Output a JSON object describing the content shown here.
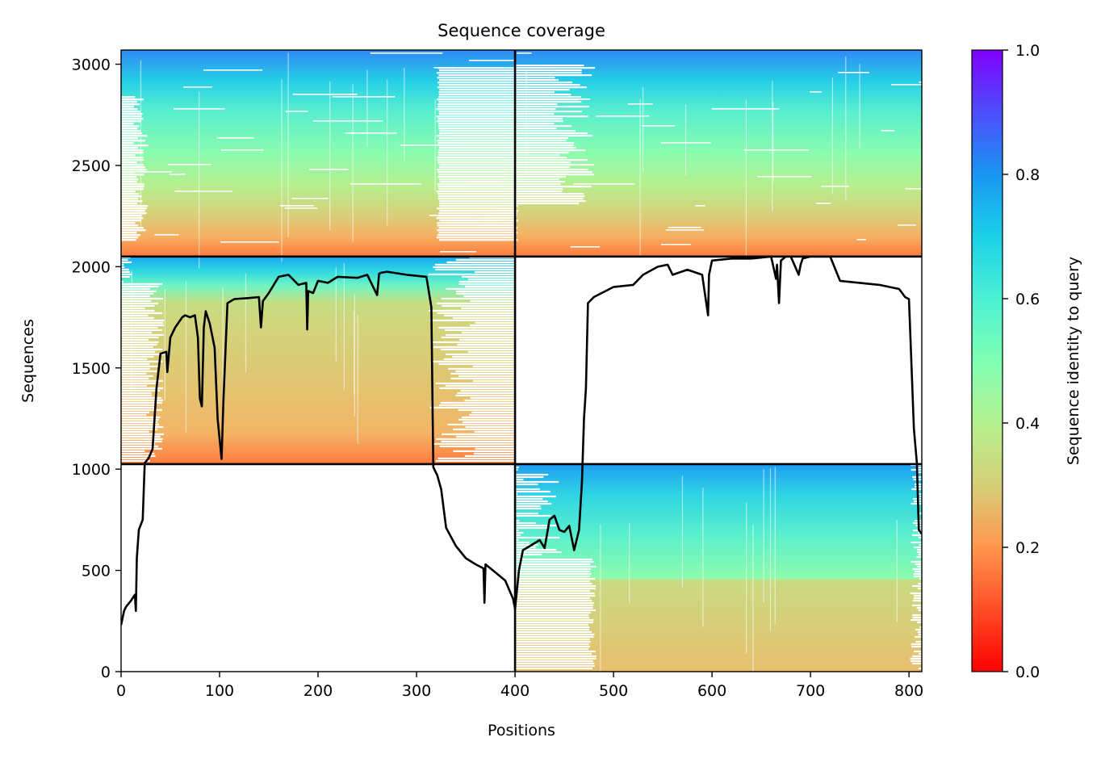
{
  "chart_data": {
    "type": "heatmap",
    "title": "Sequence coverage",
    "xlabel": "Positions",
    "ylabel": "Sequences",
    "xlim": [
      0,
      813
    ],
    "ylim": [
      0,
      3070
    ],
    "xticks": [
      0,
      100,
      200,
      300,
      400,
      500,
      600,
      700,
      800
    ],
    "yticks": [
      0,
      500,
      1000,
      1500,
      2000,
      2500,
      3000
    ],
    "grid": false,
    "colormap": "rainbow_r",
    "colorbar": {
      "label": "Sequence identity to query",
      "range": [
        0,
        1
      ],
      "ticks": [
        0.0,
        0.2,
        0.4,
        0.6,
        0.8,
        1.0
      ],
      "tick_labels": [
        "0.0",
        "0.2",
        "0.4",
        "0.6",
        "0.8",
        "1.0"
      ]
    },
    "chain_boundaries": {
      "x": 400,
      "y": [
        1025,
        2050
      ]
    },
    "blocks": [
      {
        "chain_x": "A",
        "x": [
          0,
          400
        ],
        "y": [
          2050,
          3070
        ],
        "identity_bottom": 0.22,
        "identity_top": 0.82,
        "coverage": "full"
      },
      {
        "chain_x": "B",
        "x": [
          400,
          813
        ],
        "y": [
          2050,
          3070
        ],
        "identity_bottom": 0.22,
        "identity_top": 0.82,
        "coverage": "full"
      },
      {
        "chain_x": "A",
        "x": [
          0,
          400
        ],
        "y": [
          1025,
          2050
        ],
        "identity_bottom": 0.22,
        "identity_top": 0.82,
        "coverage": "partial"
      },
      {
        "chain_x": "B",
        "x": [
          400,
          813
        ],
        "y": [
          0,
          1025
        ],
        "identity_bottom": 0.28,
        "identity_top": 0.82,
        "coverage": "partial"
      }
    ],
    "coverage_line": {
      "x": [
        0,
        3,
        5,
        10,
        14,
        15,
        16,
        18,
        22,
        24,
        28,
        32,
        36,
        40,
        46,
        47,
        50,
        55,
        62,
        65,
        70,
        75,
        78,
        80,
        82,
        84,
        86,
        90,
        95,
        98,
        102,
        104,
        108,
        115,
        130,
        140,
        142,
        144,
        150,
        160,
        170,
        180,
        188,
        189,
        190,
        195,
        200,
        210,
        220,
        240,
        250,
        260,
        262,
        264,
        270,
        290,
        310,
        315,
        317,
        319,
        321,
        325,
        330,
        340,
        350,
        360,
        368,
        369,
        370,
        390,
        398,
        400,
        404,
        408,
        415,
        425,
        430,
        435,
        440,
        445,
        450,
        455,
        460,
        465,
        468,
        470,
        472,
        474,
        476,
        480,
        500,
        520,
        530,
        545,
        555,
        560,
        575,
        590,
        596,
        597,
        600,
        620,
        640,
        660,
        665,
        666,
        668,
        670,
        675,
        680,
        688,
        690,
        692,
        700,
        720,
        730,
        750,
        770,
        790,
        796,
        800,
        805,
        808,
        810,
        813
      ],
      "y": [
        230,
        300,
        320,
        350,
        380,
        300,
        560,
        700,
        750,
        1030,
        1055,
        1100,
        1400,
        1570,
        1580,
        1480,
        1650,
        1700,
        1750,
        1760,
        1750,
        1760,
        1650,
        1350,
        1310,
        1700,
        1780,
        1720,
        1600,
        1250,
        1050,
        1350,
        1820,
        1840,
        1845,
        1850,
        1700,
        1830,
        1870,
        1950,
        1960,
        1910,
        1920,
        1690,
        1880,
        1870,
        1930,
        1920,
        1950,
        1945,
        1960,
        1860,
        1965,
        1970,
        1975,
        1960,
        1950,
        1800,
        1010,
        990,
        970,
        900,
        710,
        620,
        560,
        530,
        510,
        340,
        530,
        450,
        360,
        310,
        500,
        600,
        620,
        650,
        610,
        750,
        770,
        700,
        690,
        720,
        600,
        700,
        940,
        1250,
        1400,
        1820,
        1830,
        1850,
        1900,
        1910,
        1960,
        2000,
        2010,
        1960,
        1985,
        1960,
        1760,
        1960,
        2030,
        2040,
        2040,
        2050,
        1940,
        2010,
        1820,
        2030,
        2050,
        2050,
        1960,
        2010,
        2040,
        2050,
        2050,
        1930,
        1920,
        1910,
        1890,
        1850,
        1840,
        1200,
        1030,
        700,
        680
      ]
    }
  }
}
